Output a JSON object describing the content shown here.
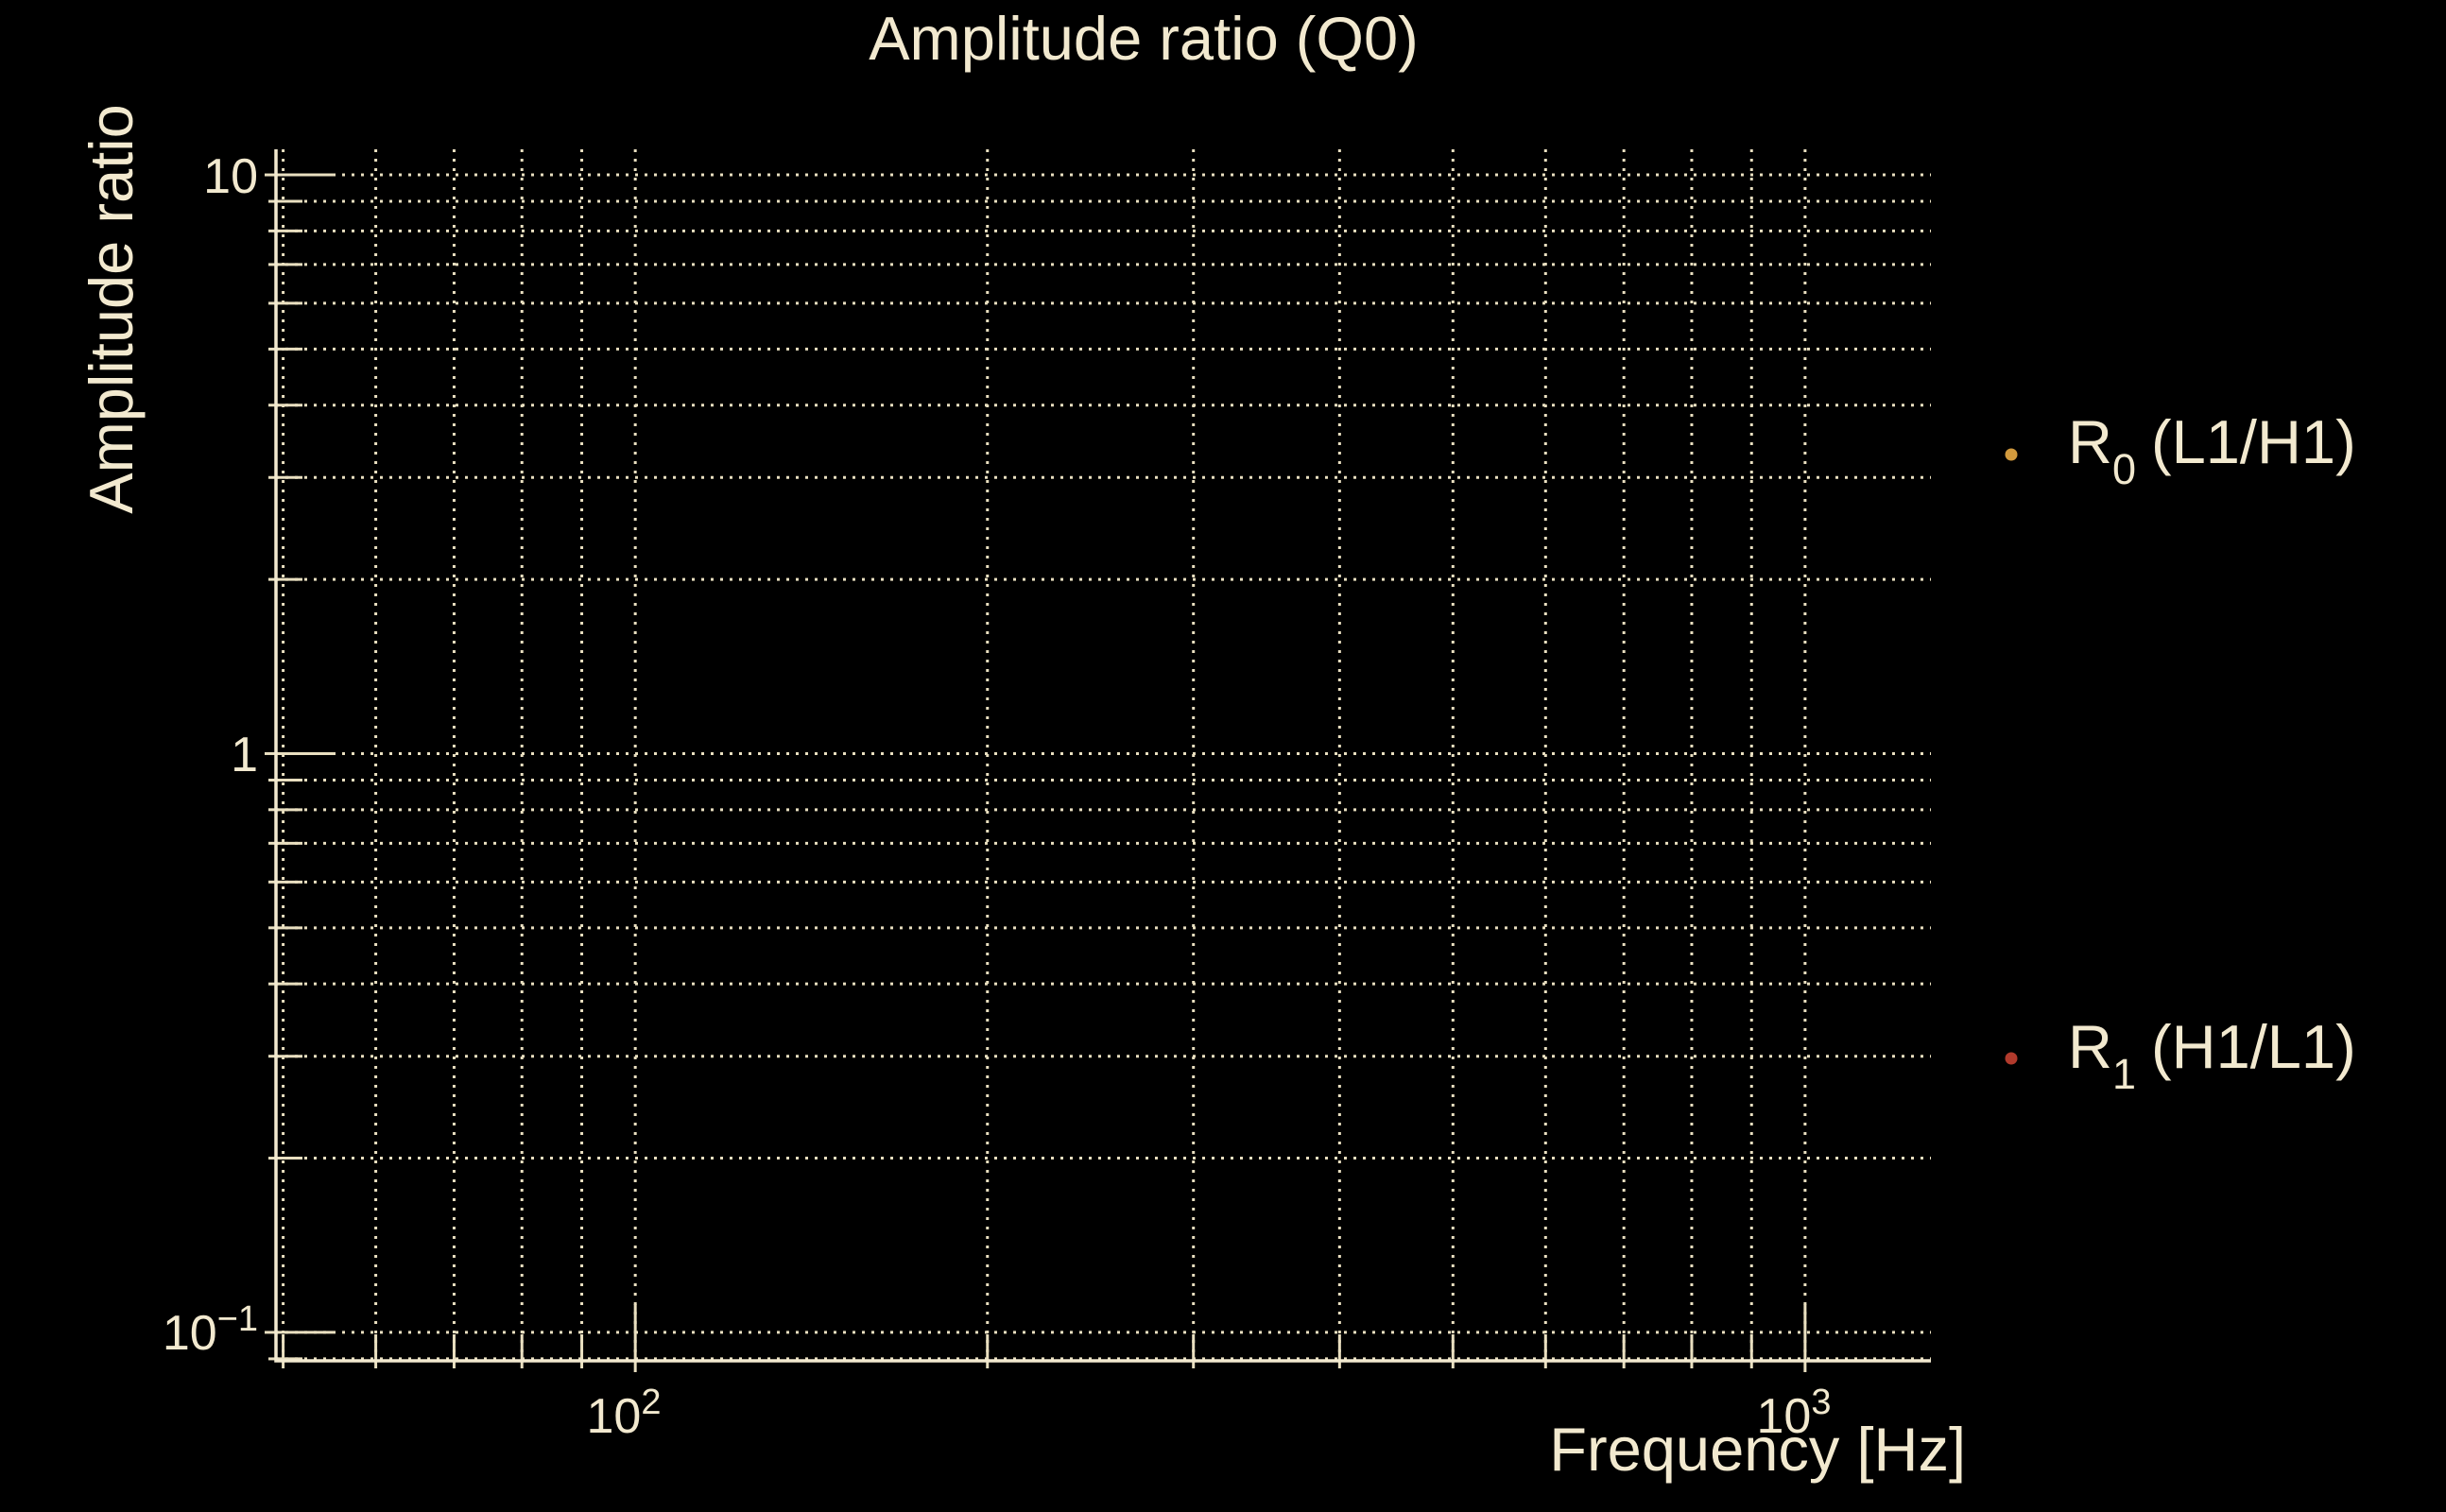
{
  "page": {
    "background": "#000000"
  },
  "chart": {
    "title": "Amplitude ratio (Q0)",
    "xlabel": "Frequency [Hz]",
    "ylabel": "Amplitude ratio",
    "text_color": "#f2e9cf",
    "grid_color": "#e9dfc0",
    "spine_color": "#f2e9cf"
  },
  "axes": {
    "x_ticks": [
      {
        "base": "10",
        "exp": "2"
      },
      {
        "base": "10",
        "exp": "3"
      }
    ],
    "y_ticks": [
      {
        "base": "10",
        "exp": ""
      },
      {
        "base": "1",
        "exp": ""
      },
      {
        "base": "10",
        "exp": "−1"
      }
    ]
  },
  "legend": {
    "items": [
      {
        "main": "R",
        "sub": "0",
        "rest": "(L1/H1)",
        "marker_color": "#d29a3d"
      },
      {
        "main": "R",
        "sub": "1",
        "rest": "(H1/L1)",
        "marker_color": "#b13a2c"
      }
    ]
  },
  "chart_data": {
    "type": "scatter",
    "title": "Amplitude ratio (Q0)",
    "xlabel": "Frequency [Hz]",
    "ylabel": "Amplitude ratio",
    "xscale": "log",
    "yscale": "log",
    "xlim": [
      49.3,
      1281
    ],
    "ylim": [
      0.0893,
      11.07
    ],
    "x_major_ticks": [
      100,
      1000
    ],
    "y_major_ticks": [
      0.1,
      1,
      10
    ],
    "grid": "dotted major+minor grid on both axes",
    "legend_position": "right of plot, outside",
    "series": [
      {
        "name": "R0 (L1/H1)",
        "marker": "dot",
        "color": "#d29a3d",
        "points": []
      },
      {
        "name": "R1 (H1/L1)",
        "marker": "dot",
        "color": "#b13a2c",
        "points": []
      }
    ],
    "note": "plot area contains grid only; no data points are visible"
  }
}
